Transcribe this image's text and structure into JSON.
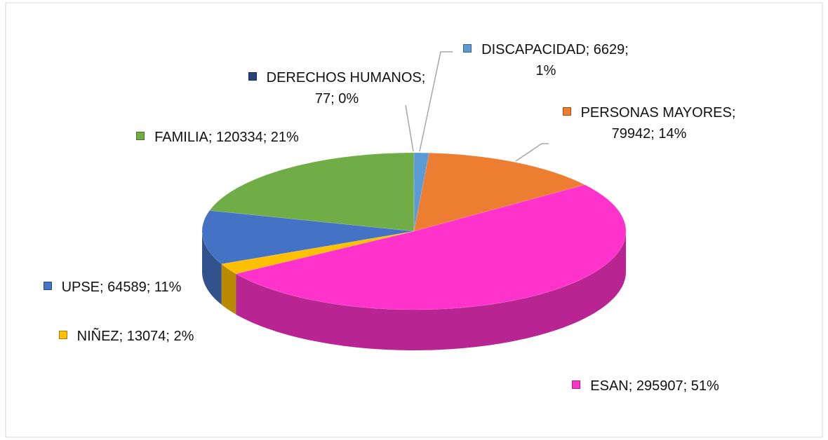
{
  "chart_data": {
    "type": "pie3d",
    "labels": [
      "DISCAPACIDAD; 6629; 1%",
      "PERSONAS MAYORES; 79942; 14%",
      "ESAN; 295907; 51%",
      "NIÑEZ; 13074; 2%",
      "UPSE; 64589; 11%",
      "FAMILIA; 120334; 21%",
      "DERECHOS HUMANOS; 77; 0%"
    ],
    "values": [
      6629,
      79942,
      295907,
      13074,
      64589,
      120334,
      77
    ],
    "colors": [
      "#5b9bd5",
      "#ed7d31",
      "#ff33cc",
      "#ffc000",
      "#4472c4",
      "#70ad47",
      "#264478"
    ]
  }
}
